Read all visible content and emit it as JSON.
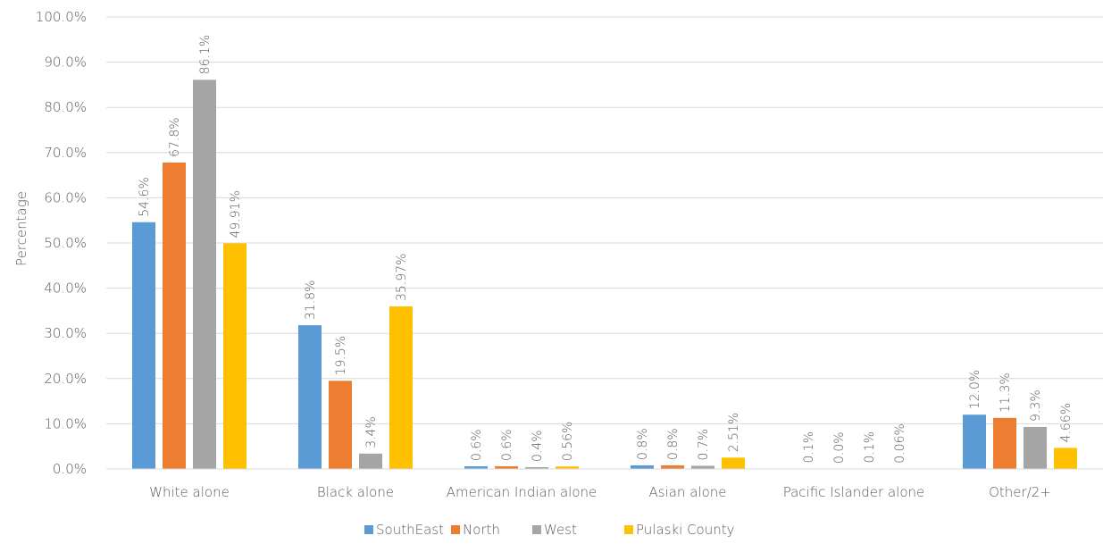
{
  "chart_data": {
    "type": "bar",
    "categories": [
      "White alone",
      "Black alone",
      "American Indian alone",
      "Asian alone",
      "Pacific Islander alone",
      "Other/2+"
    ],
    "series": [
      {
        "name": "SouthEast",
        "color": "#5b9bd5",
        "values": [
          54.6,
          31.8,
          0.6,
          0.8,
          0.1,
          12.0
        ],
        "labels": [
          "54.6%",
          "31.8%",
          "0.6%",
          "0.8%",
          "0.1%",
          "12.0%"
        ]
      },
      {
        "name": "North",
        "color": "#ed7d31",
        "values": [
          67.8,
          19.5,
          0.6,
          0.8,
          0.0,
          11.3
        ],
        "labels": [
          "67.8%",
          "19.5%",
          "0.6%",
          "0.8%",
          "0.0%",
          "11.3%"
        ]
      },
      {
        "name": "West",
        "color": "#a5a5a5",
        "values": [
          86.1,
          3.4,
          0.4,
          0.7,
          0.1,
          9.3
        ],
        "labels": [
          "86.1%",
          "3.4%",
          "0.4%",
          "0.7%",
          "0.1%",
          "9.3%"
        ]
      },
      {
        "name": "Pulaski County",
        "color": "#ffc000",
        "values": [
          49.91,
          35.97,
          0.56,
          2.51,
          0.06,
          4.66
        ],
        "labels": [
          "49.91%",
          "35.97%",
          "0.56%",
          "2.51%",
          "0.06%",
          "4.66%"
        ]
      }
    ],
    "ylabel": "Percentage",
    "xlabel": "",
    "ylim": [
      0,
      100
    ],
    "yticks": [
      "0.0%",
      "10.0%",
      "20.0%",
      "30.0%",
      "40.0%",
      "50.0%",
      "60.0%",
      "70.0%",
      "80.0%",
      "90.0%",
      "100.0%"
    ],
    "grid": true,
    "legend_position": "bottom"
  }
}
